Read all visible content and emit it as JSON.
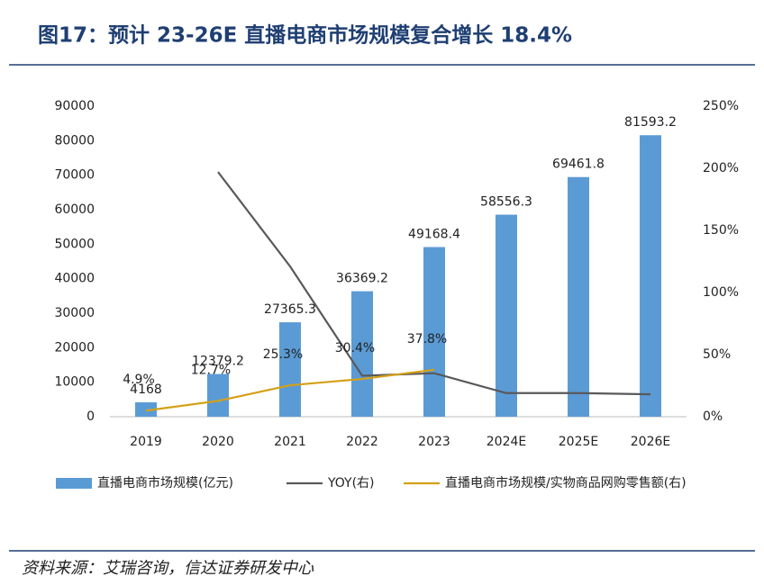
{
  "chart_data": {
    "type": "bar",
    "title": "图17：预计 23-26E 直播电商市场规模复合增长 18.4%",
    "source": "资料来源：艾瑞咨询，信达证券研发中心",
    "categories": [
      "2019",
      "2020",
      "2021",
      "2022",
      "2023",
      "2024E",
      "2025E",
      "2026E"
    ],
    "series": [
      {
        "name": "直播电商市场规模(亿元)",
        "type": "bar",
        "color": "#5b9bd5",
        "values": [
          4168,
          12379.2,
          27365.3,
          36369.2,
          49168.4,
          58556.3,
          69461.8,
          81593.2
        ]
      },
      {
        "name": "YOY(右)",
        "type": "line",
        "axis": "y2",
        "color": "#595959",
        "values": [
          null,
          197,
          121,
          33,
          35,
          19,
          19,
          18
        ]
      },
      {
        "name": "直播电商市场规模/实物商品网购零售额(右)",
        "type": "line",
        "axis": "y2",
        "color": "#d4a017",
        "values": [
          4.9,
          12.7,
          25.3,
          30.4,
          37.8,
          null,
          null,
          null
        ],
        "value_labels": [
          "4.9%",
          "12.7%",
          "25.3%",
          "30.4%",
          "37.8%",
          null,
          null,
          null
        ]
      }
    ],
    "ylim": [
      0,
      90000
    ],
    "yticks": [
      0,
      10000,
      20000,
      30000,
      40000,
      50000,
      60000,
      70000,
      80000,
      90000
    ],
    "y2lim": [
      0,
      250
    ],
    "y2ticks": [
      {
        "value": 0,
        "label": "0%"
      },
      {
        "value": 50,
        "label": "50%"
      },
      {
        "value": 100,
        "label": "100%"
      },
      {
        "value": 150,
        "label": "150%"
      },
      {
        "value": 200,
        "label": "200%"
      },
      {
        "value": 250,
        "label": "250%"
      }
    ],
    "grid": false
  }
}
